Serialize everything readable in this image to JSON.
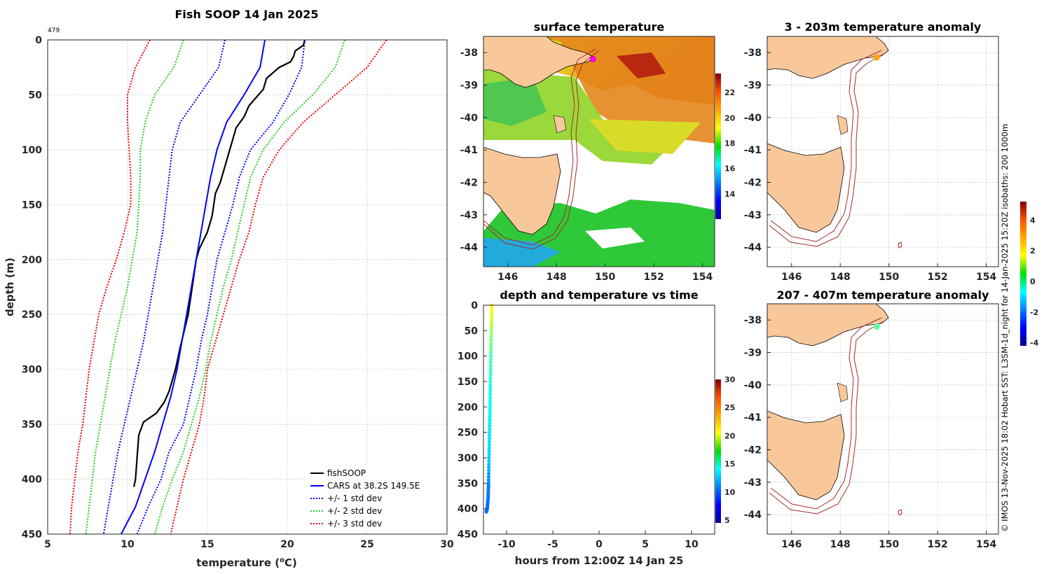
{
  "colors": {
    "fish": "#000000",
    "cars": "#0000ff",
    "std1": "#0000ff",
    "std2": "#22cc22",
    "std3": "#ee0000",
    "land": "#f8c89a",
    "isobath": "#a52a2a",
    "ship": "#ff00ff"
  },
  "chart_data": [
    {
      "type": "line",
      "title": "Fish SOOP 14 Jan 2025",
      "cast_id": "479",
      "xlabel": "temperature (",
      "xlabel_sup": "o",
      "xlabel_end": "C)",
      "ylabel": "depth (m)",
      "xlim": [
        5,
        30
      ],
      "ylim": [
        450,
        0
      ],
      "xticks": [
        5,
        10,
        15,
        20,
        25,
        30
      ],
      "yticks": [
        0,
        50,
        100,
        150,
        200,
        250,
        300,
        350,
        400,
        450
      ],
      "depth": [
        0,
        25,
        50,
        75,
        100,
        125,
        150,
        175,
        200,
        225,
        250,
        275,
        300,
        325,
        350,
        375,
        400,
        425,
        450
      ],
      "series": [
        {
          "name": "fishSOOP",
          "key": "fish",
          "dash": "",
          "depth": [
            0,
            5,
            10,
            15,
            20,
            25,
            35,
            45,
            50,
            60,
            70,
            80,
            90,
            100,
            110,
            130,
            140,
            160,
            175,
            190,
            200,
            220,
            250,
            280,
            300,
            320,
            330,
            340,
            348,
            360,
            380,
            400,
            407
          ],
          "values": [
            21.1,
            21.0,
            20.5,
            20.4,
            20.2,
            19.5,
            18.7,
            18.5,
            18.2,
            17.6,
            17.3,
            16.8,
            16.6,
            16.4,
            16.2,
            15.8,
            15.5,
            15.3,
            15.0,
            14.5,
            14.3,
            14.1,
            13.8,
            13.3,
            13.0,
            12.6,
            12.3,
            11.8,
            11.0,
            10.7,
            10.6,
            10.5,
            10.4
          ]
        },
        {
          "name": "CARS at 38.2S 149.5E",
          "key": "cars",
          "dash": "",
          "values": [
            18.6,
            18.3,
            17.3,
            16.2,
            15.6,
            15.2,
            14.9,
            14.6,
            14.3,
            14.0,
            13.7,
            13.4,
            13.1,
            12.7,
            12.2,
            11.7,
            11.1,
            10.5,
            9.6
          ]
        },
        {
          "name": "+/- 1 std dev",
          "key": "std1",
          "dash": "2 2",
          "values": [
            16.1,
            15.7,
            14.5,
            13.3,
            12.8,
            12.6,
            12.4,
            12.2,
            11.9,
            11.6,
            11.3,
            11.0,
            10.6,
            10.2,
            9.8,
            9.4,
            9.1,
            8.8,
            8.5
          ]
        },
        {
          "name": "+/- 1 std dev",
          "key": "std1",
          "dash": "2 2",
          "legend": false,
          "values": [
            21.1,
            20.9,
            20.1,
            19.1,
            17.7,
            17.0,
            16.6,
            16.1,
            15.6,
            15.3,
            15.0,
            14.6,
            14.3,
            13.9,
            13.5,
            12.6,
            12.1,
            11.3,
            10.6
          ]
        },
        {
          "name": "+/- 2 std dev",
          "key": "std2",
          "dash": "2 2",
          "values": [
            13.5,
            12.9,
            11.7,
            11.1,
            10.8,
            10.8,
            10.7,
            10.6,
            10.3,
            10.0,
            9.6,
            9.2,
            8.9,
            8.6,
            8.3,
            8.0,
            7.8,
            7.6,
            7.4
          ]
        },
        {
          "name": "+/- 2 std dev",
          "key": "std2",
          "dash": "2 2",
          "legend": false,
          "values": [
            23.6,
            23.0,
            21.6,
            19.8,
            18.5,
            17.7,
            17.3,
            16.9,
            16.5,
            16.0,
            15.6,
            15.2,
            14.9,
            14.5,
            14.0,
            13.5,
            12.8,
            12.2,
            11.7
          ]
        },
        {
          "name": "+/- 3 std dev",
          "key": "std3",
          "dash": "2 2",
          "values": [
            11.4,
            10.5,
            10.0,
            10.0,
            10.1,
            10.2,
            10.2,
            9.8,
            9.3,
            8.7,
            8.2,
            7.9,
            7.6,
            7.4,
            7.2,
            6.9,
            6.7,
            6.5,
            6.4
          ]
        },
        {
          "name": "+/- 3 std dev",
          "key": "std3",
          "dash": "2 2",
          "legend": false,
          "values": [
            26.2,
            25.0,
            23.0,
            21.0,
            19.5,
            18.5,
            18.0,
            17.6,
            17.0,
            16.5,
            16.0,
            15.5,
            15.0,
            14.8,
            14.5,
            14.0,
            13.5,
            13.1,
            12.7
          ]
        }
      ]
    },
    {
      "type": "heatmap",
      "title": "surface temperature",
      "xlim": [
        145,
        154.5
      ],
      "ylim": [
        -44.6,
        -37.5
      ],
      "xticks": [
        146,
        148,
        150,
        152,
        154
      ],
      "yticks": [
        -38,
        -39,
        -40,
        -41,
        -42,
        -43,
        -44
      ],
      "colorbar": {
        "min": 12,
        "max": 23.5,
        "ticks": [
          14,
          16,
          18,
          20,
          22
        ]
      },
      "ship_position": {
        "lon": 149.5,
        "lat": -38.2
      }
    },
    {
      "type": "scatter",
      "title": "depth and temperature vs time",
      "xlabel": "hours from 12:00Z 14 Jan 25",
      "xlim": [
        -12.5,
        12.5
      ],
      "ylim": [
        450,
        0
      ],
      "xticks": [
        -10,
        -5,
        0,
        5,
        10
      ],
      "yticks": [
        0,
        50,
        100,
        150,
        200,
        250,
        300,
        350,
        400,
        450
      ],
      "colorbar": {
        "min": 4.5,
        "max": 30,
        "ticks": [
          5,
          10,
          15,
          20,
          25,
          30
        ]
      },
      "hours": [
        -11.6,
        -11.65,
        -11.7,
        -11.75,
        -11.8,
        -11.85,
        -11.9,
        -11.95,
        -12.0,
        -12.1,
        -12.2
      ],
      "depth": [
        0,
        50,
        100,
        150,
        200,
        250,
        300,
        350,
        380,
        400,
        407
      ],
      "temperature": [
        21,
        18,
        16,
        15,
        14,
        13.5,
        13,
        11,
        10.6,
        10.5,
        10.4
      ]
    },
    {
      "type": "heatmap",
      "title": "3 - 203m temperature anomaly",
      "xlim": [
        145,
        154.5
      ],
      "ylim": [
        -44.6,
        -37.5
      ],
      "xticks": [
        146,
        148,
        150,
        152,
        154
      ],
      "yticks": [
        -38,
        -39,
        -40,
        -41,
        -42,
        -43,
        -44
      ],
      "marker": {
        "lon": 149.5,
        "lat": -38.15,
        "anomaly": 2.5
      }
    },
    {
      "type": "heatmap",
      "title": "207 - 407m temperature anomaly",
      "xlim": [
        145,
        154.5
      ],
      "ylim": [
        -44.6,
        -37.5
      ],
      "xticks": [
        146,
        148,
        150,
        152,
        154
      ],
      "yticks": [
        -38,
        -39,
        -40,
        -41,
        -42,
        -43,
        -44
      ],
      "marker": {
        "lon": 149.5,
        "lat": -38.2,
        "anomaly": 0.2
      }
    }
  ],
  "anomaly_colorbar": {
    "min": -4.2,
    "max": 5.2,
    "ticks": [
      -4,
      -2,
      0,
      2,
      4
    ]
  },
  "credit": "© IMOS 13-Nov-2025 18:02 Hobart SST: L3SM-1d_night for 14-Jan-2025 15:20Z isobaths: 200  1000m"
}
